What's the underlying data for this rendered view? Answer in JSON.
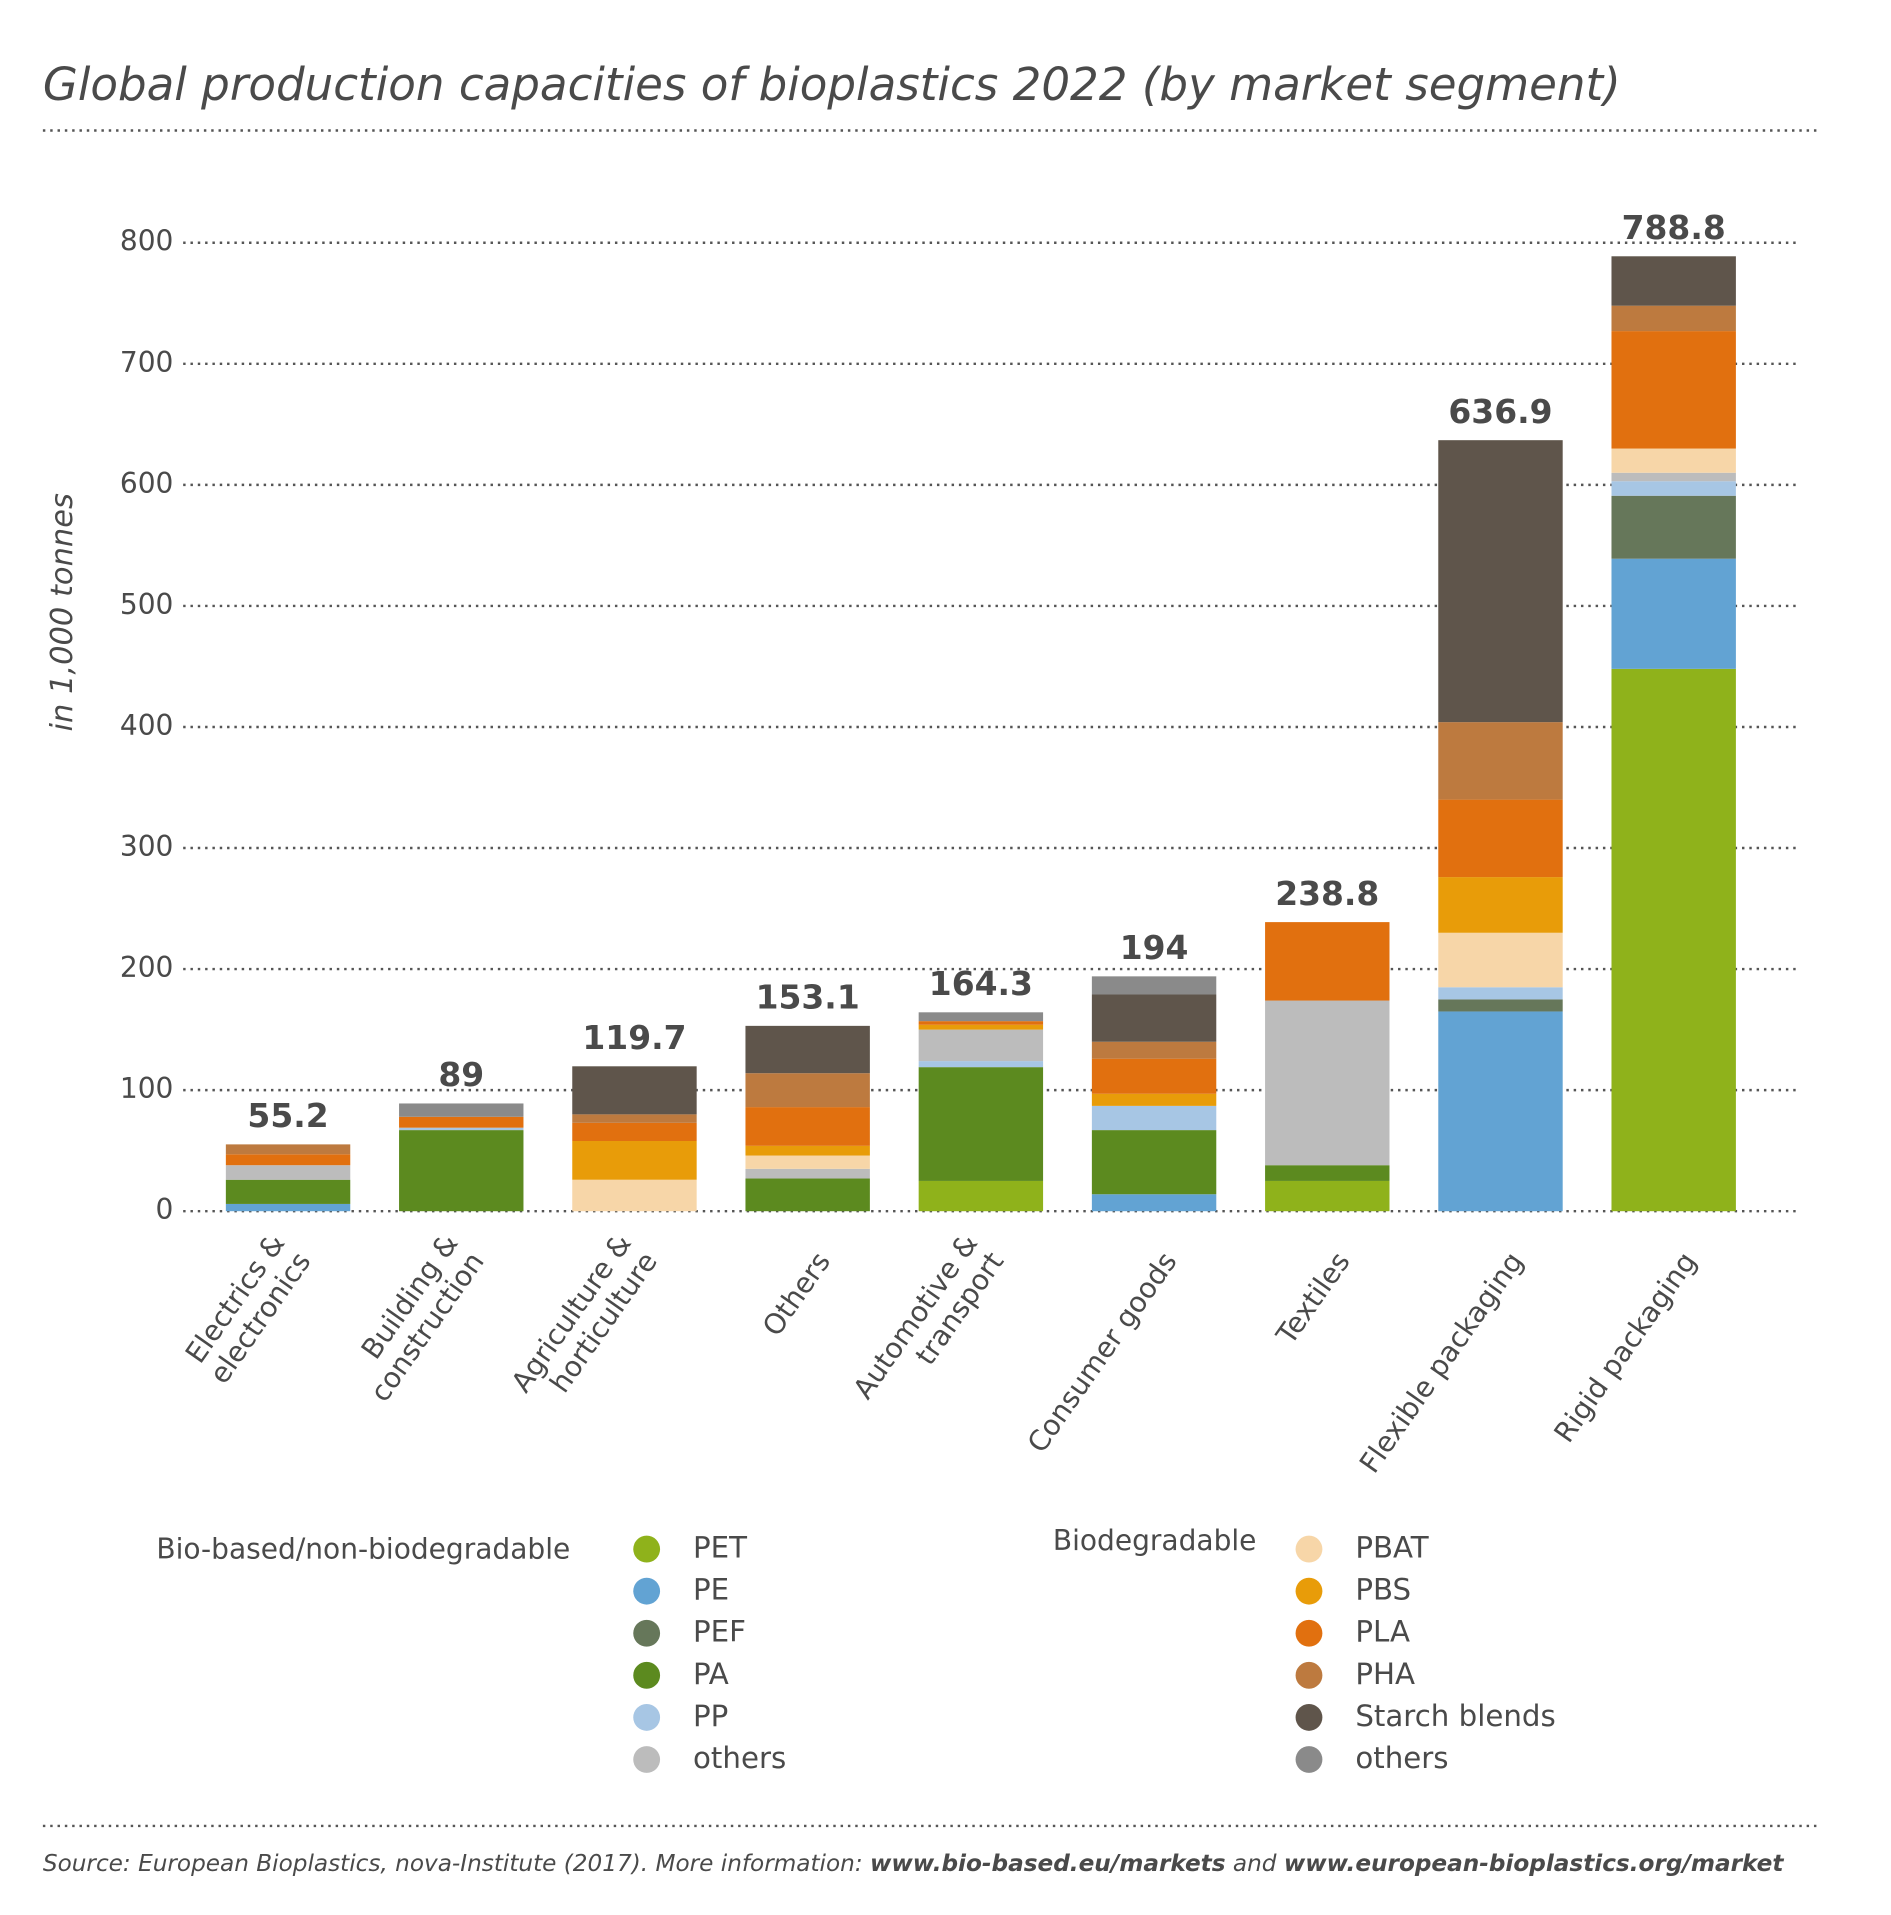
{
  "chart_data": {
    "type": "stacked_bar",
    "title": "Global production capacities of bioplastics 2022 (by market segment)",
    "y_label": "in 1,000 tonnes",
    "categories": [
      "Electrics &\nelectronics",
      "Building &\nconstruction",
      "Agriculture &\nhorticulture",
      "Others",
      "Automotive &\ntransport",
      "Consumer goods",
      "Textiles",
      "Flexible packaging",
      "Rigid packaging"
    ],
    "totals": [
      55.2,
      89,
      119.7,
      153.1,
      164.3,
      194,
      238.8,
      636.9,
      788.8
    ],
    "ylim": [
      0,
      800
    ],
    "yticks": [
      0,
      100,
      200,
      300,
      400,
      500,
      600,
      700,
      800
    ],
    "grid": true,
    "legend_titles": [
      "Bio-based/non-biodegradable",
      "Biodegradable"
    ],
    "series": [
      {
        "name": "PET",
        "color": "#8fb21b",
        "values": [
          0,
          0,
          0,
          0,
          25,
          0,
          25,
          0,
          448
        ]
      },
      {
        "name": "PE",
        "color": "#62a3d3",
        "values": [
          6,
          0,
          0,
          0,
          0,
          14,
          0,
          165,
          91
        ]
      },
      {
        "name": "PEF",
        "color": "#66775a",
        "values": [
          0,
          0,
          0,
          0,
          0,
          0,
          0,
          10,
          52
        ]
      },
      {
        "name": "PA",
        "color": "#5c8a1f",
        "values": [
          20,
          67,
          0,
          27,
          94,
          53,
          13,
          0,
          0
        ]
      },
      {
        "name": "PP",
        "color": "#a7c6e4",
        "values": [
          0,
          2,
          0,
          0,
          5,
          20,
          0,
          10,
          12
        ]
      },
      {
        "name": "others",
        "color": "#bcbcbc",
        "values": [
          12,
          0,
          0,
          8,
          26,
          0,
          136,
          0,
          7
        ]
      },
      {
        "name": "PBAT",
        "color": "#f7d6a8",
        "values": [
          0,
          0,
          26,
          11,
          0,
          0,
          0,
          45,
          20
        ]
      },
      {
        "name": "PBS",
        "color": "#e89c09",
        "values": [
          0,
          0,
          32,
          8,
          4,
          10,
          0,
          46,
          0
        ]
      },
      {
        "name": "PLA",
        "color": "#e1700f",
        "values": [
          9,
          9,
          15,
          32,
          3,
          29,
          64.8,
          64,
          97
        ]
      },
      {
        "name": "PHA",
        "color": "#bd7a3f",
        "values": [
          8.2,
          0,
          7,
          28,
          0,
          14,
          0,
          64,
          21
        ]
      },
      {
        "name": "Starch blends",
        "color": "#5f554b",
        "values": [
          0,
          0,
          39.7,
          39.1,
          0,
          39,
          0,
          232.9,
          40.8
        ]
      },
      {
        "name": "others",
        "color": "#8a8a8a",
        "values": [
          0,
          11,
          0,
          0,
          7.3,
          15,
          0,
          0,
          0
        ]
      }
    ],
    "source": [
      "Source: European Bioplastics, nova-Institute (2017). More information: ",
      "www.bio-based.eu/markets",
      " and ",
      "www.european-bioplastics.org/market"
    ]
  }
}
